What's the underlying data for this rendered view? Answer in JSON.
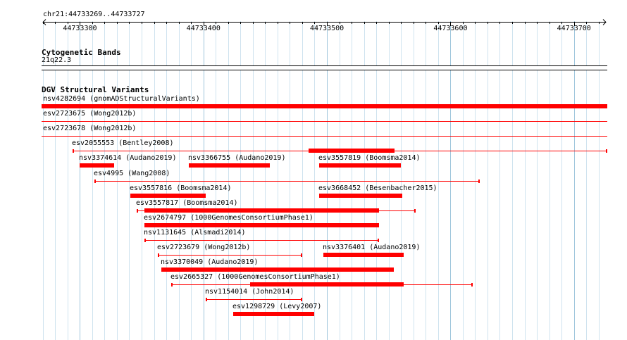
{
  "ruler": {
    "location": "chr21:44733269..44733727",
    "ticks": [
      "44733300",
      "44733400",
      "44733500",
      "44733600",
      "44733700"
    ]
  },
  "cytoband": {
    "title": "Cytogenetic Bands",
    "band": "21q22.3"
  },
  "dgv": {
    "title": "DGV Structural Variants",
    "features": [
      {
        "label": "nsv4282694 (gnomADStructuralVariants)",
        "start": 44733269,
        "end": 44733727,
        "thick": [
          44733269,
          44733727
        ]
      },
      {
        "label": "esv2723675 (Wong2012b)",
        "start": 44733269,
        "end": 44733727,
        "thick": null
      },
      {
        "label": "esv2723678 (Wong2012b)",
        "start": 44733269,
        "end": 44733727,
        "thick": null
      },
      {
        "label": "esv2055553 (Bentley2008)",
        "start": 44733294,
        "end": 44733727,
        "thick": [
          44733485,
          44733555
        ]
      },
      {
        "label": "nsv3374614 (Audano2019)",
        "start": 44733300,
        "end": 44733328,
        "thick": [
          44733300,
          44733328
        ]
      },
      {
        "label": "nsv3366755 (Audano2019)",
        "start": 44733388,
        "end": 44733454,
        "thick": [
          44733388,
          44733454
        ]
      },
      {
        "label": "esv3557819 (Boomsma2014)",
        "start": 44733494,
        "end": 44733560,
        "thick": [
          44733494,
          44733560
        ]
      },
      {
        "label": "esv4995 (Wang2008)",
        "start": 44733312,
        "end": 44733624,
        "thick": null
      },
      {
        "label": "esv3557816 (Boomsma2014)",
        "start": 44733341,
        "end": 44733402,
        "thick": [
          44733341,
          44733402
        ]
      },
      {
        "label": "esv3668452 (Besenbacher2015)",
        "start": 44733494,
        "end": 44733561,
        "thick": [
          44733494,
          44733561
        ]
      },
      {
        "label": "esv3557817 (Boomsma2014)",
        "start": 44733346,
        "end": 44733572,
        "thick": [
          44733352,
          44733542
        ]
      },
      {
        "label": "esv2674797 (1000GenomesConsortiumPhase1)",
        "start": 44733352,
        "end": 44733542,
        "thick": [
          44733352,
          44733542
        ]
      },
      {
        "label": "nsv1131645 (Alsmadi2014)",
        "start": 44733352,
        "end": 44733542,
        "thick": null
      },
      {
        "label": "esv2723679 (Wong2012b)",
        "start": 44733363,
        "end": 44733480,
        "thick": null
      },
      {
        "label": "nsv3376401 (Audano2019)",
        "start": 44733497,
        "end": 44733562,
        "thick": [
          44733497,
          44733562
        ]
      },
      {
        "label": "nsv3370049 (Audano2019)",
        "start": 44733366,
        "end": 44733554,
        "thick": [
          44733366,
          44733554
        ]
      },
      {
        "label": "esv2665327 (1000GenomesConsortiumPhase1)",
        "start": 44733374,
        "end": 44733618,
        "thick": [
          44733438,
          44733562
        ]
      },
      {
        "label": "nsv1154014 (John2014)",
        "start": 44733402,
        "end": 44733480,
        "thick": null
      },
      {
        "label": "esv1298729 (Levy2007)",
        "start": 44733424,
        "end": 44733490,
        "thick": [
          44733424,
          44733490
        ]
      }
    ]
  }
}
